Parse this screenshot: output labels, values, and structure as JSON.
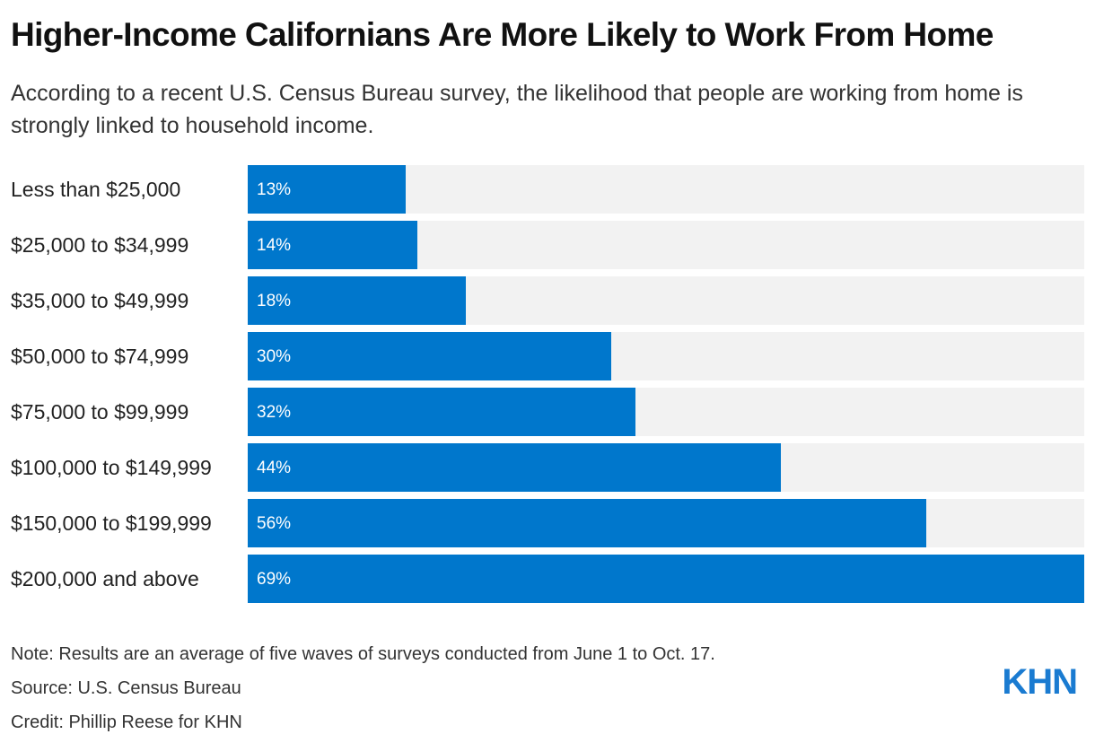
{
  "header": {
    "title": "Higher-Income Californians Are More Likely to Work From Home",
    "subtitle": "According to a recent U.S. Census Bureau survey, the likelihood that people are working from home is strongly linked to household income."
  },
  "chart_data": {
    "type": "bar",
    "orientation": "horizontal",
    "categories": [
      "Less than $25,000",
      "$25,000 to $34,999",
      "$35,000 to $49,999",
      "$50,000 to $74,999",
      "$75,000 to $99,999",
      "$100,000 to $149,999",
      "$150,000 to $199,999",
      "$200,000 and above"
    ],
    "values": [
      13,
      14,
      18,
      30,
      32,
      44,
      56,
      69
    ],
    "value_labels": [
      "13%",
      "14%",
      "18%",
      "30%",
      "32%",
      "44%",
      "56%",
      "69%"
    ],
    "xlim": [
      0,
      69
    ],
    "grid": false,
    "legend": "none",
    "colors": {
      "bar": "#0077cc",
      "track": "#f2f2f2",
      "value_text": "#ffffff"
    }
  },
  "footer": {
    "note": "Note: Results are an average of five waves of surveys conducted from June 1 to Oct. 17.",
    "source": "Source: U.S. Census Bureau",
    "credit": "Credit: Phillip Reese for KHN",
    "logo_text": "KHN"
  },
  "colors": {
    "logo": "#1a7bd1"
  }
}
